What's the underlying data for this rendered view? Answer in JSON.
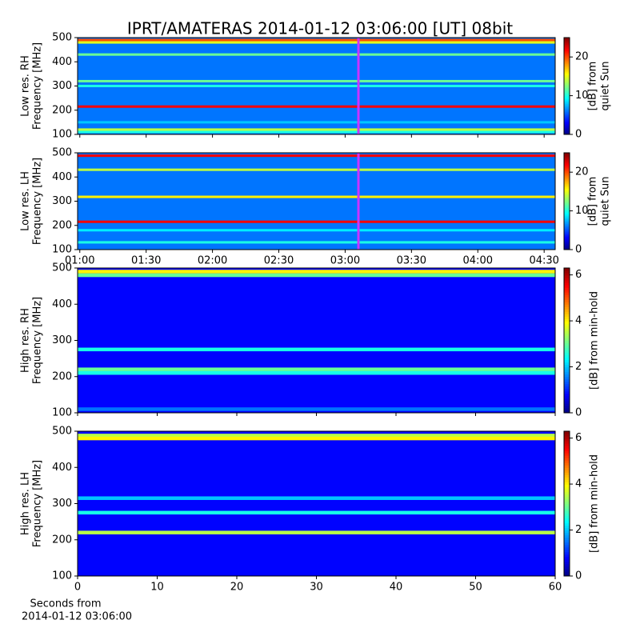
{
  "chart_data": [
    {
      "type": "heatmap",
      "title": "IPRT/AMATERAS 2014-01-12 03:06:00 [UT]   08bit",
      "colormap": "jet",
      "ylabel": [
        "Low res. RH",
        "Frequency [MHz]"
      ],
      "colorbar_label": [
        "[dB] from",
        "quiet Sun"
      ],
      "xlim": [
        -1,
        215
      ],
      "xticks": [
        0,
        30,
        60,
        90,
        120,
        150,
        180,
        210
      ],
      "show_xtick_labels": false,
      "ylim": [
        100,
        500
      ],
      "yticks": [
        100,
        200,
        300,
        400,
        500
      ],
      "vlim": [
        0,
        25
      ],
      "vticks": [
        0,
        10,
        20
      ],
      "background": 6,
      "bands": {
        "y": [
          490,
          480,
          430,
          320,
          300,
          215,
          150,
          120,
          110
        ],
        "values": [
          20,
          15,
          12,
          12,
          10,
          22,
          8,
          14,
          10
        ]
      },
      "marker_x": 126,
      "marker_color": "#cc33ff"
    },
    {
      "type": "heatmap",
      "colormap": "jet",
      "ylabel": [
        "Low res. LH",
        "Frequency [MHz]"
      ],
      "colorbar_label": [
        "[dB] from",
        "quiet Sun"
      ],
      "xlim": [
        -1,
        215
      ],
      "xticks": [
        {
          "value": 0,
          "label": "01:00"
        },
        {
          "value": 30,
          "label": "01:30"
        },
        {
          "value": 60,
          "label": "02:00"
        },
        {
          "value": 90,
          "label": "02:30"
        },
        {
          "value": 120,
          "label": "03:00"
        },
        {
          "value": 150,
          "label": "03:30"
        },
        {
          "value": 180,
          "label": "04:00"
        },
        {
          "value": 210,
          "label": "04:30"
        }
      ],
      "ylim": [
        100,
        500
      ],
      "yticks": [
        100,
        200,
        300,
        400,
        500
      ],
      "vlim": [
        0,
        25
      ],
      "vticks": [
        0,
        10,
        20
      ],
      "background": 6,
      "bands": {
        "y": [
          488,
          430,
          318,
          215,
          180,
          130
        ],
        "values": [
          22,
          14,
          16,
          22,
          9,
          10
        ]
      },
      "marker_x": 126,
      "marker_color": "#cc33ff"
    },
    {
      "type": "heatmap",
      "colormap": "jet",
      "ylabel": [
        "High res. RH",
        "Frequency [MHz]"
      ],
      "colorbar_label": [
        "[dB] from min-hold"
      ],
      "xlim": [
        0,
        60
      ],
      "xticks": [
        0,
        10,
        20,
        30,
        40,
        50,
        60
      ],
      "show_xtick_labels": false,
      "ylim": [
        100,
        500
      ],
      "yticks": [
        100,
        200,
        300,
        400,
        500
      ],
      "vlim": [
        0,
        6.3
      ],
      "vticks": [
        0,
        2,
        4,
        6
      ],
      "background": 0.8,
      "bands": {
        "y": [
          490,
          480,
          275,
          220,
          210,
          110
        ],
        "values": [
          4,
          3,
          2.5,
          3,
          2.5,
          1.5
        ]
      }
    },
    {
      "type": "heatmap",
      "colormap": "jet",
      "ylabel": [
        "High res. LH",
        "Frequency [MHz]"
      ],
      "colorbar_label": [
        "[dB] from min-hold"
      ],
      "xlabel": [
        "Seconds from",
        "2014-01-12 03:06:00"
      ],
      "xlim": [
        0,
        60
      ],
      "xticks": [
        0,
        10,
        20,
        30,
        40,
        50,
        60
      ],
      "ylim": [
        100,
        500
      ],
      "yticks": [
        100,
        200,
        300,
        400,
        500
      ],
      "vlim": [
        0,
        6.3
      ],
      "vticks": [
        0,
        2,
        4,
        6
      ],
      "background": 0.8,
      "bands": {
        "y": [
          488,
          480,
          315,
          275,
          220
        ],
        "values": [
          3.5,
          4,
          2,
          2.5,
          3.5
        ]
      }
    }
  ]
}
